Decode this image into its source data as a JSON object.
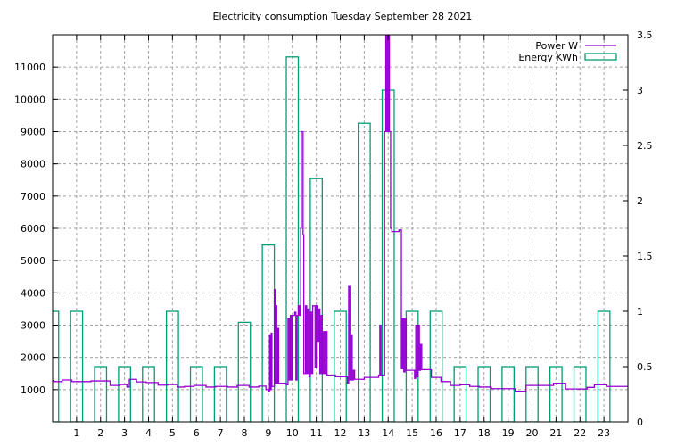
{
  "chart_data": {
    "type": "bar+line",
    "title": "Electricity consumption Tuesday September 28 2021",
    "xlabel": "",
    "ylabel": "",
    "xlim": [
      0,
      24
    ],
    "ylim_left": [
      0,
      12000
    ],
    "ylim_right": [
      0,
      3.5
    ],
    "grid": true,
    "legend_position": "top-right",
    "x_ticks": [
      "1",
      "2",
      "3",
      "4",
      "5",
      "6",
      "7",
      "8",
      "9",
      "10",
      "11",
      "12",
      "13",
      "14",
      "15",
      "16",
      "17",
      "18",
      "19",
      "20",
      "21",
      "22",
      "23"
    ],
    "y_left_ticks": [
      "1000",
      "2000",
      "3000",
      "4000",
      "5000",
      "6000",
      "7000",
      "8000",
      "9000",
      "10000",
      "11000"
    ],
    "y_right_ticks": [
      "0",
      "0.5",
      "1",
      "1.5",
      "2",
      "2.5",
      "3",
      "3.5"
    ],
    "series": [
      {
        "name": "Power W",
        "axis": "left",
        "style": "steps",
        "color": "#9400d3",
        "points": [
          [
            0,
            1280
          ],
          [
            0.05,
            1250
          ],
          [
            0.4,
            1300
          ],
          [
            0.8,
            1250
          ],
          [
            1.6,
            1270
          ],
          [
            2.4,
            1130
          ],
          [
            2.8,
            1160
          ],
          [
            3.1,
            1080
          ],
          [
            3.2,
            1320
          ],
          [
            3.5,
            1240
          ],
          [
            3.9,
            1220
          ],
          [
            4.4,
            1140
          ],
          [
            4.8,
            1160
          ],
          [
            5.2,
            1080
          ],
          [
            5.5,
            1100
          ],
          [
            5.9,
            1130
          ],
          [
            6.4,
            1080
          ],
          [
            6.8,
            1100
          ],
          [
            7.3,
            1080
          ],
          [
            7.7,
            1130
          ],
          [
            8.2,
            1080
          ],
          [
            8.6,
            1110
          ],
          [
            8.9,
            1000
          ],
          [
            9.0,
            950
          ],
          [
            9.05,
            2700
          ],
          [
            9.08,
            1000
          ],
          [
            9.12,
            2750
          ],
          [
            9.15,
            1100
          ],
          [
            9.25,
            4100
          ],
          [
            9.28,
            1200
          ],
          [
            9.32,
            3600
          ],
          [
            9.35,
            1200
          ],
          [
            9.4,
            2900
          ],
          [
            9.43,
            1200
          ],
          [
            9.75,
            1150
          ],
          [
            9.82,
            3200
          ],
          [
            9.87,
            1300
          ],
          [
            9.92,
            3300
          ],
          [
            9.97,
            1300
          ],
          [
            10.0,
            3300
          ],
          [
            10.1,
            3400
          ],
          [
            10.15,
            1300
          ],
          [
            10.2,
            3300
          ],
          [
            10.25,
            3600
          ],
          [
            10.3,
            3300
          ],
          [
            10.35,
            6000
          ],
          [
            10.38,
            9000
          ],
          [
            10.45,
            5800
          ],
          [
            10.48,
            1500
          ],
          [
            10.55,
            3600
          ],
          [
            10.6,
            1500
          ],
          [
            10.65,
            3500
          ],
          [
            10.7,
            1400
          ],
          [
            10.75,
            3400
          ],
          [
            10.8,
            1500
          ],
          [
            10.85,
            3600
          ],
          [
            10.95,
            1700
          ],
          [
            11.0,
            3600
          ],
          [
            11.05,
            2500
          ],
          [
            11.1,
            3500
          ],
          [
            11.15,
            1500
          ],
          [
            11.2,
            3300
          ],
          [
            11.25,
            1500
          ],
          [
            11.3,
            2800
          ],
          [
            11.35,
            1500
          ],
          [
            11.4,
            2800
          ],
          [
            11.45,
            1450
          ],
          [
            11.8,
            1400
          ],
          [
            12.3,
            1200
          ],
          [
            12.35,
            4200
          ],
          [
            12.4,
            1300
          ],
          [
            12.45,
            2700
          ],
          [
            12.5,
            1300
          ],
          [
            12.55,
            1600
          ],
          [
            12.6,
            1320
          ],
          [
            13.0,
            1380
          ],
          [
            13.6,
            1450
          ],
          [
            13.65,
            3000
          ],
          [
            13.7,
            1450
          ],
          [
            13.85,
            9000
          ],
          [
            13.9,
            12000
          ],
          [
            13.95,
            9000
          ],
          [
            14.0,
            12000
          ],
          [
            14.05,
            9000
          ],
          [
            14.1,
            6000
          ],
          [
            14.15,
            5900
          ],
          [
            14.45,
            5950
          ],
          [
            14.55,
            1650
          ],
          [
            14.6,
            3200
          ],
          [
            14.65,
            1550
          ],
          [
            14.7,
            3200
          ],
          [
            14.75,
            1600
          ],
          [
            15.1,
            1350
          ],
          [
            15.15,
            3000
          ],
          [
            15.2,
            1400
          ],
          [
            15.25,
            3000
          ],
          [
            15.3,
            1600
          ],
          [
            15.35,
            2400
          ],
          [
            15.4,
            1620
          ],
          [
            15.8,
            1380
          ],
          [
            16.2,
            1250
          ],
          [
            16.6,
            1130
          ],
          [
            17.0,
            1150
          ],
          [
            17.4,
            1100
          ],
          [
            17.8,
            1080
          ],
          [
            18.3,
            1030
          ],
          [
            19.3,
            950
          ],
          [
            19.75,
            1130
          ],
          [
            20.9,
            1200
          ],
          [
            21.4,
            1020
          ],
          [
            22.3,
            1070
          ],
          [
            22.6,
            1150
          ],
          [
            23.1,
            1100
          ],
          [
            24,
            1100
          ]
        ]
      },
      {
        "name": "Energy KWh",
        "axis": "right",
        "style": "boxes",
        "color": "#009e73",
        "x": [
          0,
          1,
          2,
          3,
          4,
          5,
          6,
          7,
          8,
          9,
          10,
          11,
          12,
          13,
          14,
          15,
          16,
          17,
          18,
          19,
          20,
          21,
          22,
          23
        ],
        "values": [
          1.0,
          1.0,
          0.5,
          0.5,
          0.5,
          1.0,
          0.5,
          0.5,
          0.9,
          1.6,
          3.3,
          2.2,
          1.0,
          2.7,
          3.0,
          1.0,
          1.0,
          0.5,
          0.5,
          0.5,
          0.5,
          0.5,
          0.5,
          1.0
        ]
      }
    ]
  }
}
